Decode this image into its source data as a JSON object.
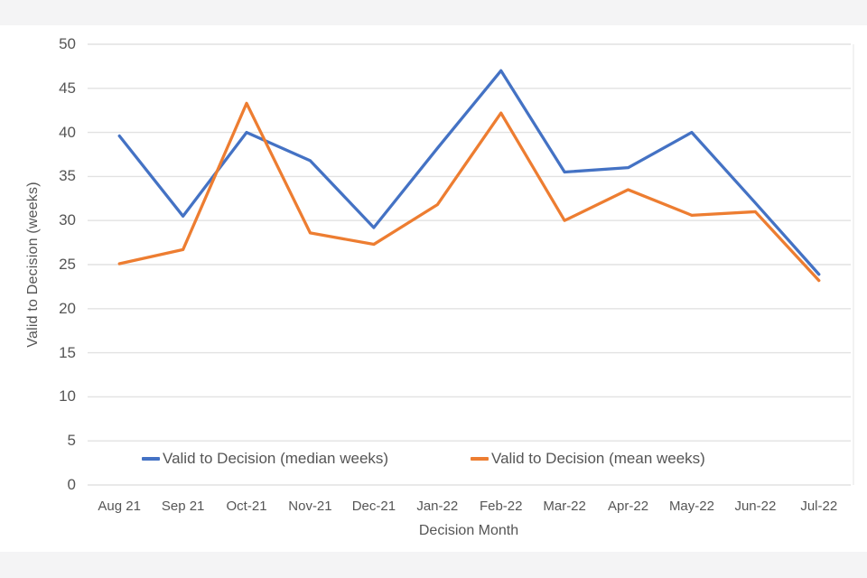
{
  "chart_data": {
    "type": "line",
    "title": "",
    "xlabel": "Decision Month",
    "ylabel": "Valid to Decision (weeks)",
    "categories": [
      "Aug 21",
      "Sep 21",
      "Oct-21",
      "Nov-21",
      "Dec-21",
      "Jan-22",
      "Feb-22",
      "Mar-22",
      "Apr-22",
      "May-22",
      "Jun-22",
      "Jul-22"
    ],
    "series": [
      {
        "name": "Valid to Decision (median weeks)",
        "color": "#4472C4",
        "values": [
          39.6,
          30.5,
          40.0,
          36.8,
          29.2,
          38.2,
          47.0,
          35.5,
          36.0,
          40.0,
          32.0,
          23.9
        ]
      },
      {
        "name": "Valid to Decision (mean weeks)",
        "color": "#ED7D31",
        "values": [
          25.1,
          26.7,
          43.3,
          28.6,
          27.3,
          31.8,
          42.2,
          30.0,
          33.5,
          30.6,
          31.0,
          23.2
        ]
      }
    ],
    "ylim": [
      0,
      50
    ],
    "y_ticks": [
      0,
      5,
      10,
      15,
      20,
      25,
      30,
      35,
      40,
      45,
      50
    ],
    "grid": "horizontal",
    "gridline_color": "#e2e2e2",
    "plot_border_color": "#ededed",
    "tick_text_color": "#555555",
    "legend_position": "bottom-inside"
  }
}
